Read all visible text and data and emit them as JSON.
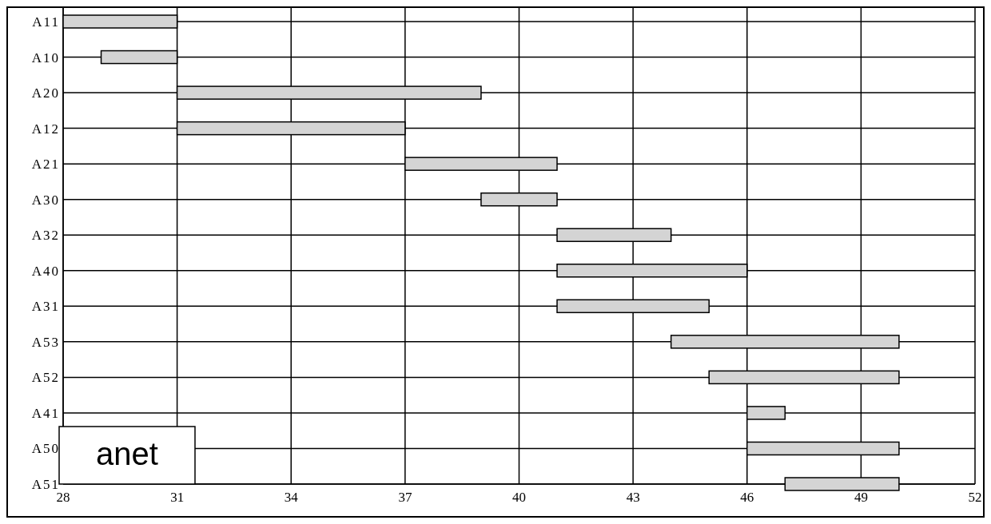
{
  "chart_data": {
    "type": "bar",
    "orientation": "horizontal",
    "categories": [
      "A11",
      "A10",
      "A20",
      "A12",
      "A21",
      "A30",
      "A32",
      "A40",
      "A31",
      "A53",
      "A52",
      "A41",
      "A50",
      "A51"
    ],
    "base": [
      28,
      29,
      31,
      31,
      37,
      39,
      41,
      41,
      41,
      44,
      45,
      46,
      46,
      47
    ],
    "values": [
      3,
      2,
      8,
      6,
      4,
      2,
      3,
      5,
      4,
      6,
      5,
      1,
      4,
      3
    ],
    "color": "#d4d4d4",
    "xlim": [
      28,
      52
    ],
    "xticks": [
      28,
      31,
      34,
      37,
      40,
      43,
      46,
      49,
      52
    ],
    "grid": true,
    "annotations": [
      "anet"
    ]
  }
}
